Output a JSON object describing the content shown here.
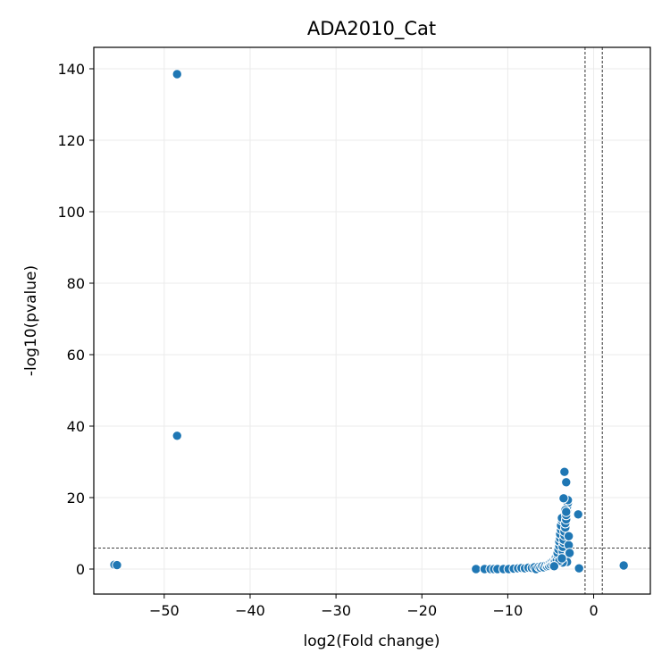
{
  "chart_data": {
    "type": "scatter",
    "title": "ADA2010_Cat",
    "xlabel": "log2(Fold change)",
    "ylabel": "-log10(pvalue)",
    "xlim": [
      -58.2,
      6.6
    ],
    "ylim": [
      -7,
      146
    ],
    "xticks": [
      -50,
      -40,
      -30,
      -20,
      -10,
      0
    ],
    "xtick_labels": [
      "−50",
      "−40",
      "−30",
      "−20",
      "−10",
      "0"
    ],
    "yticks": [
      0,
      20,
      40,
      60,
      80,
      100,
      120,
      140
    ],
    "ytick_labels": [
      "0",
      "20",
      "40",
      "60",
      "80",
      "100",
      "120",
      "140"
    ],
    "grid": true,
    "thresholds": {
      "x": [
        -1,
        1
      ],
      "y": 5.9
    },
    "point_color": "#1f77b4",
    "points": [
      [
        -48.5,
        138.5
      ],
      [
        -48.5,
        37.3
      ],
      [
        -55.8,
        1.2
      ],
      [
        -55.5,
        1.1
      ],
      [
        -13.7,
        0.0
      ],
      [
        -12.7,
        0.0
      ],
      [
        -12.0,
        0.0
      ],
      [
        -11.6,
        0.0
      ],
      [
        -11.2,
        0.0
      ],
      [
        -10.5,
        0.0
      ],
      [
        -9.9,
        0.0
      ],
      [
        -9.3,
        0.1
      ],
      [
        -8.8,
        0.2
      ],
      [
        -8.4,
        0.3
      ],
      [
        -8.0,
        0.2
      ],
      [
        -7.6,
        0.4
      ],
      [
        -7.2,
        0.3
      ],
      [
        -6.9,
        0.5
      ],
      [
        -6.7,
        0.0
      ],
      [
        -6.4,
        0.6
      ],
      [
        -6.2,
        0.4
      ],
      [
        -6.0,
        0.8
      ],
      [
        -5.8,
        0.5
      ],
      [
        -5.6,
        1.0
      ],
      [
        -5.4,
        0.7
      ],
      [
        -5.3,
        1.3
      ],
      [
        -5.2,
        0.9
      ],
      [
        -5.1,
        1.6
      ],
      [
        -5.0,
        1.2
      ],
      [
        -4.9,
        2.0
      ],
      [
        -4.8,
        1.5
      ],
      [
        -4.7,
        2.4
      ],
      [
        -4.6,
        1.8
      ],
      [
        -4.5,
        2.9
      ],
      [
        -4.5,
        2.1
      ],
      [
        -4.4,
        3.3
      ],
      [
        -4.3,
        2.5
      ],
      [
        -4.2,
        3.8
      ],
      [
        -4.2,
        4.5
      ],
      [
        -4.1,
        5.5
      ],
      [
        -4.0,
        6.5
      ],
      [
        -4.0,
        7.7
      ],
      [
        -3.9,
        8.6
      ],
      [
        -3.9,
        9.8
      ],
      [
        -3.8,
        11.0
      ],
      [
        -3.8,
        12.2
      ],
      [
        -3.7,
        13.6
      ],
      [
        -3.7,
        14.3
      ],
      [
        -3.6,
        5.0
      ],
      [
        -3.6,
        6.2
      ],
      [
        -3.5,
        7.4
      ],
      [
        -3.5,
        8.2
      ],
      [
        -3.4,
        9.4
      ],
      [
        -3.4,
        10.5
      ],
      [
        -3.3,
        11.6
      ],
      [
        -3.3,
        12.8
      ],
      [
        -3.2,
        13.9
      ],
      [
        -3.2,
        15.1
      ],
      [
        -3.1,
        16.2
      ],
      [
        -3.1,
        17.4
      ],
      [
        -3.0,
        18.5
      ],
      [
        -3.0,
        19.3
      ],
      [
        -3.5,
        19.8
      ],
      [
        -3.3,
        16.5
      ],
      [
        -3.2,
        16.0
      ],
      [
        -3.4,
        27.2
      ],
      [
        -3.2,
        24.3
      ],
      [
        -3.0,
        3.8
      ],
      [
        -2.9,
        6.7
      ],
      [
        -3.1,
        2.0
      ],
      [
        -3.6,
        1.8
      ],
      [
        -4.0,
        2.3
      ],
      [
        -2.8,
        4.5
      ],
      [
        -2.9,
        9.2
      ],
      [
        -3.7,
        3.0
      ],
      [
        -4.6,
        0.8
      ],
      [
        -1.8,
        15.3
      ],
      [
        -1.7,
        0.2
      ],
      [
        3.5,
        1.0
      ]
    ]
  }
}
